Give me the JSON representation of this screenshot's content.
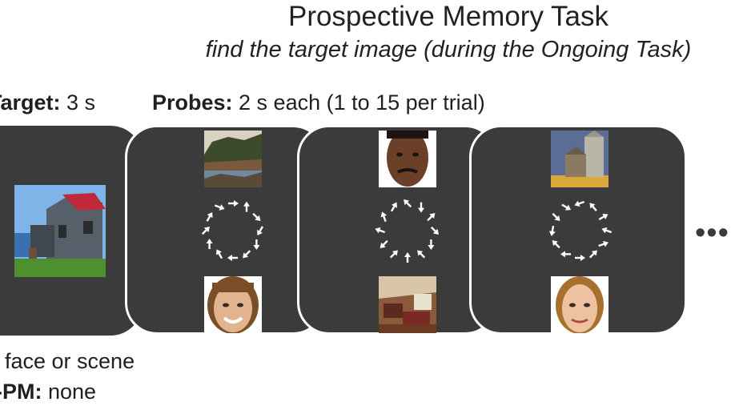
{
  "title": "Prospective Memory Task",
  "subtitle": "find the target image (during the Ongoing Task)",
  "target_label": {
    "bold": "Target:",
    "rest": " 3 s"
  },
  "probes_label": {
    "bold": "Probes:",
    "rest": " 2 s each (1 to 15 per trial)"
  },
  "footer": {
    "line1": "face or scene",
    "line2_bold": "-PM:",
    "line2_rest": " none"
  },
  "continuation": "•••",
  "colors": {
    "panel": "#3b3b3b",
    "border": "#ffffff",
    "arrow": "#ffffff"
  },
  "panels": [
    {
      "name": "target",
      "images": [
        "house-image"
      ]
    },
    {
      "name": "probe-1",
      "images": [
        "coast-scene-image",
        "arrow-circle",
        "woman-face-image"
      ]
    },
    {
      "name": "probe-2",
      "images": [
        "man-face-image",
        "arrow-circle",
        "bedroom-scene-image"
      ]
    },
    {
      "name": "probe-3",
      "images": [
        "silo-scene-image",
        "arrow-circle",
        "young-woman-face-image"
      ]
    }
  ],
  "arrow_directions_deg": {
    "probe-1": [
      0,
      270,
      45,
      120,
      90,
      135,
      180,
      240,
      270,
      315,
      300,
      20
    ],
    "probe-2": [
      225,
      90,
      315,
      45,
      90,
      225,
      270,
      315,
      135,
      200,
      250,
      300
    ],
    "probe-3": [
      160,
      230,
      330,
      200,
      340,
      315,
      0,
      180,
      225,
      100,
      45,
      30
    ]
  }
}
